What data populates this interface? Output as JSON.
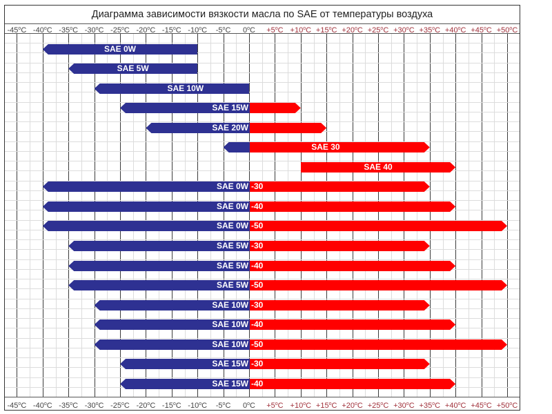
{
  "chart_data": {
    "type": "bar",
    "subtype": "horizontal range (floating) bars",
    "title": "Диаграмма зависимости вязкости масла по SAE от температуры воздуха",
    "xlabel": "",
    "ylabel": "",
    "x_range": [
      -45,
      50
    ],
    "x_tick_step": 5,
    "x_ticks": [
      "-45°C",
      "-40°C",
      "-35°C",
      "-30°C",
      "-25°C",
      "-20°C",
      "-15°C",
      "-10°C",
      "-5°C",
      "0°C",
      "+5°C",
      "+10°C",
      "+15°C",
      "+20°C",
      "+25°C",
      "+30°C",
      "+35°C",
      "+40°C",
      "+45°C",
      "+50°C"
    ],
    "axis_position": "top and bottom",
    "grid": true,
    "legend": null,
    "colors": {
      "cold": "#2e3192",
      "warm": "#ff0000",
      "negative_tick": "#444444",
      "positive_tick": "#a0303a"
    },
    "series": [
      {
        "name": "SAE 0W",
        "label_blue": "SAE 0W",
        "label_red": "",
        "min": -40,
        "max": -10
      },
      {
        "name": "SAE 5W",
        "label_blue": "SAE 5W",
        "label_red": "",
        "min": -35,
        "max": -10
      },
      {
        "name": "SAE 10W",
        "label_blue": "SAE 10W",
        "label_red": "",
        "min": -30,
        "max": 0
      },
      {
        "name": "SAE 15W",
        "label_blue": "SAE 15W",
        "label_red": "",
        "min": -25,
        "max": 10
      },
      {
        "name": "SAE 20W",
        "label_blue": "SAE 20W",
        "label_red": "",
        "min": -20,
        "max": 15
      },
      {
        "name": "SAE 30",
        "label_blue": "",
        "label_red": "SAE 30",
        "min": -5,
        "max": 35
      },
      {
        "name": "SAE 40",
        "label_blue": "",
        "label_red": "SAE 40",
        "min": 10,
        "max": 40
      },
      {
        "name": "SAE 0W-30",
        "label_blue": "SAE 0W",
        "label_red": "-30",
        "min": -40,
        "max": 35
      },
      {
        "name": "SAE 0W-40",
        "label_blue": "SAE 0W",
        "label_red": "-40",
        "min": -40,
        "max": 40
      },
      {
        "name": "SAE 0W-50",
        "label_blue": "SAE 0W",
        "label_red": "-50",
        "min": -40,
        "max": 50
      },
      {
        "name": "SAE 5W-30",
        "label_blue": "SAE 5W",
        "label_red": "-30",
        "min": -35,
        "max": 35
      },
      {
        "name": "SAE 5W-40",
        "label_blue": "SAE 5W",
        "label_red": "-40",
        "min": -35,
        "max": 40
      },
      {
        "name": "SAE 5W-50",
        "label_blue": "SAE 5W",
        "label_red": "-50",
        "min": -35,
        "max": 50
      },
      {
        "name": "SAE 10W-30",
        "label_blue": "SAE 10W",
        "label_red": "-30",
        "min": -30,
        "max": 35
      },
      {
        "name": "SAE 10W-40",
        "label_blue": "SAE 10W",
        "label_red": "-40",
        "min": -30,
        "max": 40
      },
      {
        "name": "SAE 10W-50",
        "label_blue": "SAE 10W",
        "label_red": "-50",
        "min": -30,
        "max": 50
      },
      {
        "name": "SAE 15W-30",
        "label_blue": "SAE 15W",
        "label_red": "-30",
        "min": -25,
        "max": 35
      },
      {
        "name": "SAE 15W-40",
        "label_blue": "SAE 15W",
        "label_red": "-40",
        "min": -25,
        "max": 40
      }
    ]
  }
}
